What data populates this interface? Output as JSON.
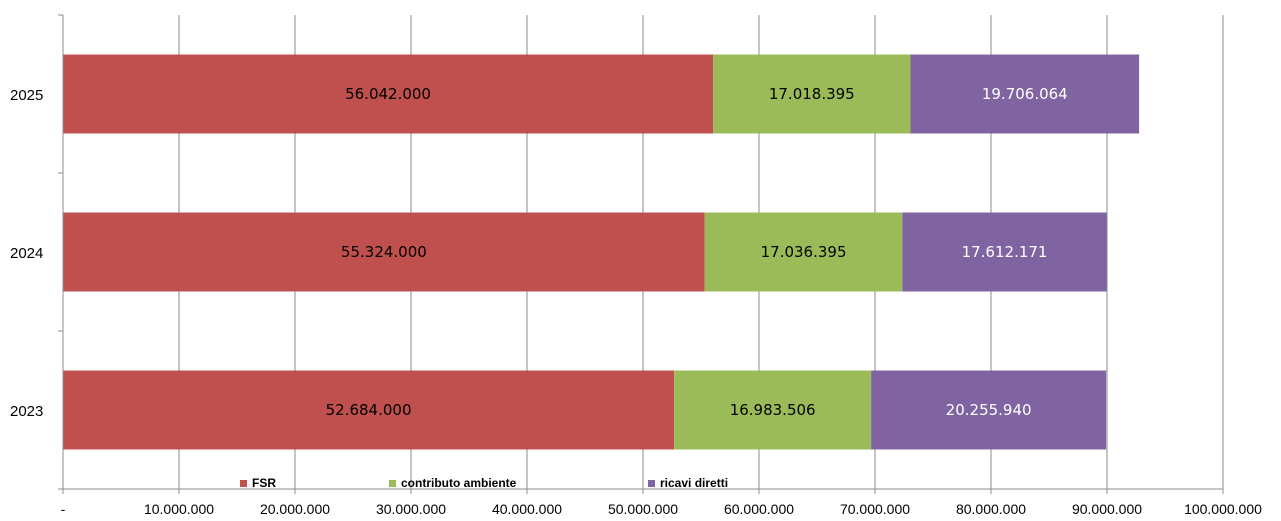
{
  "chart_data": {
    "type": "bar",
    "orientation": "horizontal",
    "stacked": true,
    "title": "",
    "xlabel": "",
    "ylabel": "",
    "categories": [
      "2025",
      "2024",
      "2023"
    ],
    "series": [
      {
        "name": "FSR",
        "color": "#c0504d",
        "label_color": "#000000",
        "values": [
          56042000,
          55324000,
          52684000
        ],
        "labels": [
          "56.042.000",
          "55.324.000",
          "52.684.000"
        ]
      },
      {
        "name": "contributo ambiente",
        "color": "#9bbb59",
        "label_color": "#000000",
        "values": [
          17018395,
          17036395,
          16983506
        ],
        "labels": [
          "17.018.395",
          "17.036.395",
          "16.983.506"
        ]
      },
      {
        "name": "ricavi diretti",
        "color": "#8064a2",
        "label_color": "#ffffff",
        "values": [
          19706064,
          17612171,
          20255940
        ],
        "labels": [
          "19.706.064",
          "17.612.171",
          "20.255.940"
        ]
      }
    ],
    "xlim": [
      0,
      100000000
    ],
    "x_ticks": [
      0,
      10000000,
      20000000,
      30000000,
      40000000,
      50000000,
      60000000,
      70000000,
      80000000,
      90000000,
      100000000
    ],
    "x_tick_labels": [
      "-",
      "10.000.000",
      "20.000.000",
      "30.000.000",
      "40.000.000",
      "50.000.000",
      "60.000.000",
      "70.000.000",
      "80.000.000",
      "90.000.000",
      "100.000.000"
    ],
    "grid": true,
    "legend_position": "bottom"
  }
}
